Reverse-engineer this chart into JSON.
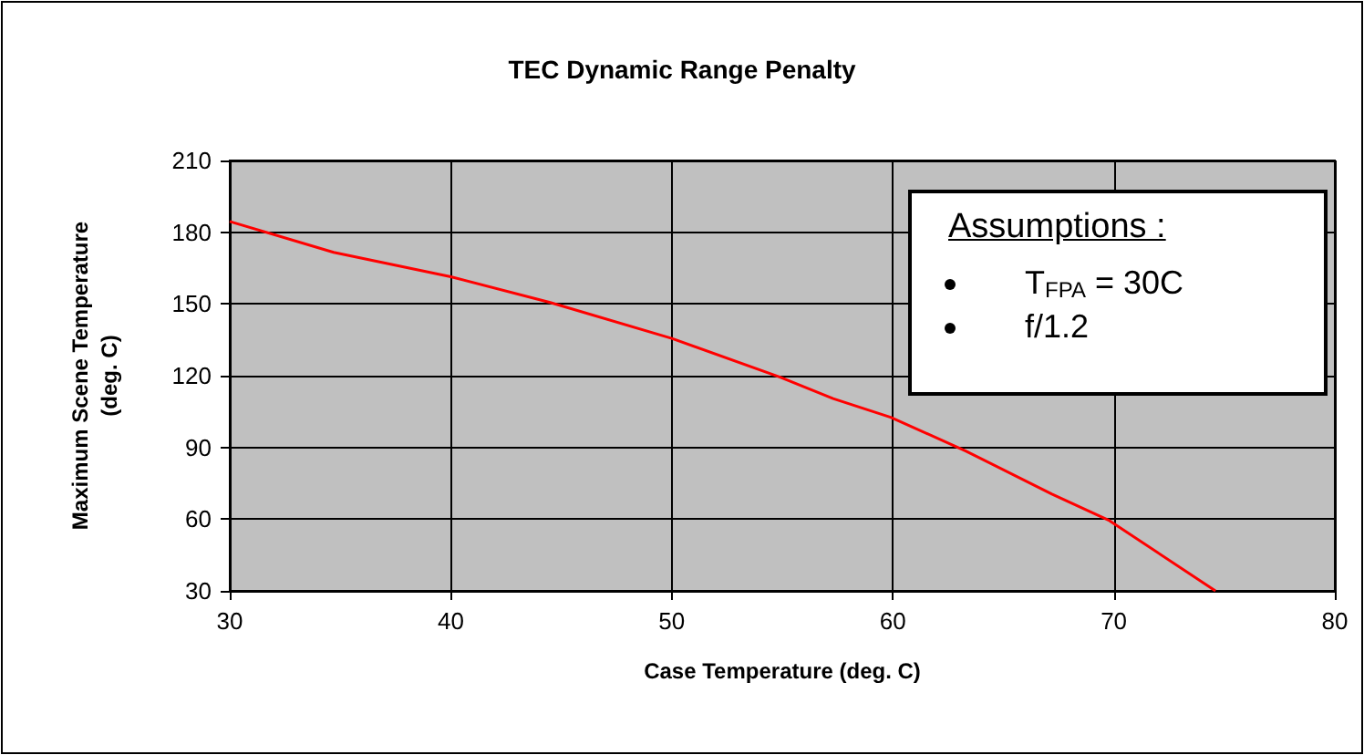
{
  "chart_data": {
    "type": "line",
    "title": "TEC Dynamic Range Penalty",
    "xlabel": "Case Temperature (deg. C)",
    "ylabel": "Maximum Scene Temperature\n(deg. C)",
    "x": [
      30,
      34.7,
      40,
      44.5,
      50,
      54.9,
      57.3,
      59.9,
      63.3,
      67.2,
      69.8,
      74.6
    ],
    "series": [
      {
        "color": "#ff0000",
        "values": [
          184.5,
          171.6,
          161.4,
          150.6,
          135.6,
          119.4,
          110.4,
          102.6,
          88.5,
          70.5,
          59.4,
          30
        ]
      }
    ],
    "xlim": [
      30,
      80
    ],
    "xticks": [
      30,
      40,
      50,
      60,
      70,
      80
    ],
    "ylim": [
      30,
      210
    ],
    "yticks": [
      30,
      60,
      90,
      120,
      150,
      180,
      210
    ],
    "grid": true,
    "marker": "none",
    "line_style": "solid",
    "annotations": [
      "Assumptions :",
      "T$_{FPA}$ = 30C",
      "f/1.2"
    ]
  }
}
